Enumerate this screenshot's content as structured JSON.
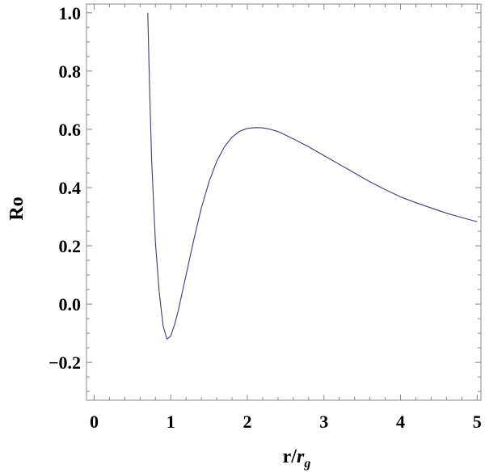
{
  "chart_data": {
    "type": "line",
    "title": "",
    "xlabel_main": "r/",
    "xlabel_italic": "r",
    "xlabel_sub": "g",
    "ylabel": "Ro",
    "xlim": [
      -0.1,
      5.05
    ],
    "ylim": [
      -0.33,
      1.03
    ],
    "xticks": [
      0,
      1,
      2,
      3,
      4,
      5
    ],
    "xtick_labels": [
      "0",
      "1",
      "2",
      "3",
      "4",
      "5"
    ],
    "yticks": [
      -0.2,
      0.0,
      0.2,
      0.4,
      0.6,
      0.8,
      1.0
    ],
    "ytick_labels": [
      "−0.2",
      "0.0",
      "0.2",
      "0.4",
      "0.6",
      "0.8",
      "1.0"
    ],
    "grid": false,
    "line_color": "#3a3a8c",
    "series": [
      {
        "x": [
          0.7,
          0.72,
          0.75,
          0.8,
          0.85,
          0.9,
          0.95,
          1.0,
          1.05,
          1.1,
          1.2,
          1.3,
          1.4,
          1.5,
          1.6,
          1.7,
          1.8,
          1.9,
          2.0,
          2.1,
          2.2,
          2.3,
          2.4,
          2.5,
          2.6,
          2.8,
          3.0,
          3.2,
          3.4,
          3.6,
          3.8,
          4.0,
          4.2,
          4.4,
          4.6,
          4.8,
          5.0
        ],
        "y": [
          1.0,
          0.78,
          0.5,
          0.21,
          0.04,
          -0.075,
          -0.12,
          -0.11,
          -0.07,
          -0.02,
          0.1,
          0.22,
          0.33,
          0.42,
          0.49,
          0.54,
          0.573,
          0.593,
          0.603,
          0.606,
          0.605,
          0.6,
          0.592,
          0.58,
          0.567,
          0.54,
          0.51,
          0.48,
          0.45,
          0.42,
          0.393,
          0.368,
          0.348,
          0.33,
          0.312,
          0.297,
          0.283
        ]
      }
    ]
  }
}
